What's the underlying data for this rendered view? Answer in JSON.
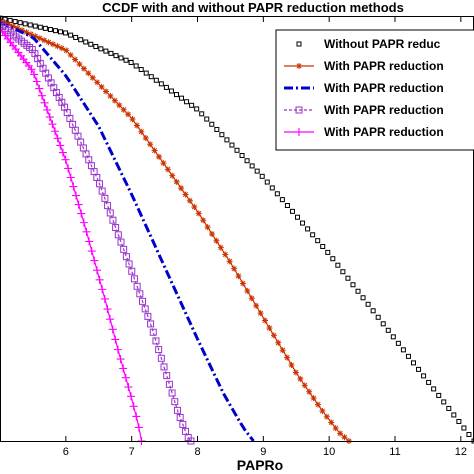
{
  "chart_data": {
    "type": "line",
    "title": "CCDF with and without PAPR reduction methods",
    "xlabel": "PAPRo",
    "ylabel": "",
    "xlim": [
      5.0,
      12.2
    ],
    "ylim": [
      0,
      1
    ],
    "x_ticks": [
      "6",
      "7",
      "8",
      "9",
      "10",
      "11",
      "12"
    ],
    "legend_position": "top-right",
    "series": [
      {
        "name": "Without PAPR reduc",
        "color": "#000000",
        "line": "none",
        "marker": "square-small",
        "x": [
          5.0,
          6.0,
          7.0,
          8.0,
          9.0,
          10.0,
          11.0,
          11.6,
          12.0,
          12.2
        ],
        "y": [
          0.995,
          0.96,
          0.89,
          0.78,
          0.62,
          0.44,
          0.24,
          0.12,
          0.04,
          0.0
        ]
      },
      {
        "name": "With PAPR reduction",
        "color": "#cc3300",
        "line": "solid",
        "marker": "star",
        "x": [
          5.0,
          6.0,
          7.0,
          8.0,
          8.5,
          9.0,
          9.5,
          9.9,
          10.15,
          10.3
        ],
        "y": [
          0.99,
          0.92,
          0.76,
          0.54,
          0.42,
          0.29,
          0.16,
          0.07,
          0.02,
          0.0
        ]
      },
      {
        "name": "With PAPR reduction",
        "color": "#0000cc",
        "line": "dashdot",
        "marker": "none",
        "x": [
          5.0,
          5.5,
          6.0,
          6.5,
          7.0,
          7.5,
          8.0,
          8.4,
          8.7,
          8.85
        ],
        "y": [
          0.985,
          0.95,
          0.86,
          0.74,
          0.58,
          0.41,
          0.24,
          0.11,
          0.03,
          0.0
        ]
      },
      {
        "name": "With PAPR reduction",
        "color": "#9933cc",
        "line": "dashed",
        "marker": "square",
        "x": [
          5.0,
          5.5,
          6.0,
          6.5,
          7.0,
          7.3,
          7.5,
          7.7,
          7.85,
          7.9
        ],
        "y": [
          0.98,
          0.92,
          0.78,
          0.61,
          0.4,
          0.27,
          0.17,
          0.07,
          0.01,
          0.0
        ]
      },
      {
        "name": "With PAPR reduction",
        "color": "#ff00ff",
        "line": "solid",
        "marker": "plus",
        "x": [
          5.0,
          5.5,
          6.0,
          6.3,
          6.6,
          6.8,
          7.0,
          7.1,
          7.15
        ],
        "y": [
          0.97,
          0.87,
          0.66,
          0.5,
          0.33,
          0.21,
          0.1,
          0.04,
          0.0
        ]
      }
    ]
  }
}
